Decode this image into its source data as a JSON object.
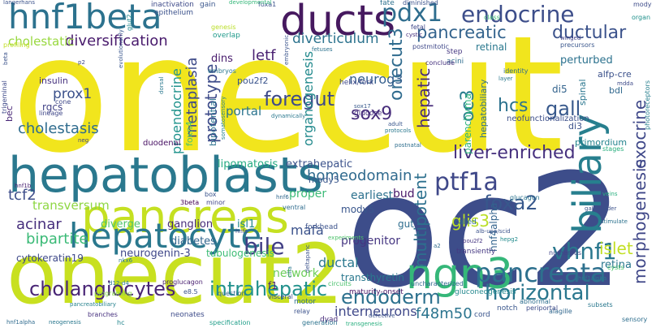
{
  "words": [
    {
      "text": "onecut",
      "color": "#f1e51d"
    },
    {
      "text": "oc2",
      "color": "#3d4d8a"
    },
    {
      "text": "onecut2",
      "color": "#c8e020"
    },
    {
      "text": "hepatoblasts",
      "color": "#2a788e"
    },
    {
      "text": "pancreas",
      "color": "#c5e021"
    },
    {
      "text": "ducts",
      "color": "#46195f"
    },
    {
      "text": "hnf1beta",
      "color": "#2c728e"
    },
    {
      "text": "biliary",
      "color": "#277f8e"
    },
    {
      "text": "ngn3",
      "color": "#35b779"
    },
    {
      "text": "hepatocyte",
      "color": "#2a788e"
    },
    {
      "text": "pancreata",
      "color": "#2d708e"
    },
    {
      "text": "bile",
      "color": "#423f85"
    },
    {
      "text": "vhnf1",
      "color": "#2a788e"
    },
    {
      "text": "pdx1",
      "color": "#2e6d8e"
    },
    {
      "text": "endocrine",
      "color": "#3d4e8a"
    },
    {
      "text": "ptf1a",
      "color": "#3f4889"
    },
    {
      "text": "horizontal",
      "color": "#2a778e"
    },
    {
      "text": "cholangiocytes",
      "color": "#482475"
    },
    {
      "text": "endoderm",
      "color": "#2d718e"
    },
    {
      "text": "intrahepatic",
      "color": "#21918c"
    },
    {
      "text": "foregut",
      "color": "#3e4a89"
    },
    {
      "text": "ductular",
      "color": "#3b528b"
    },
    {
      "text": "pancreatic",
      "color": "#33638d"
    },
    {
      "text": "diversification",
      "color": "#481a6c"
    },
    {
      "text": "prototype",
      "color": "#3e4c8a"
    },
    {
      "text": "hepatic",
      "color": "#472c7a"
    },
    {
      "text": "liver-enriched",
      "color": "#46307e"
    },
    {
      "text": "homeodomain",
      "color": "#306a8e"
    },
    {
      "text": "foxa2",
      "color": "#38588c"
    },
    {
      "text": "morphogenesis",
      "color": "#3f4788"
    },
    {
      "text": "exocrine",
      "color": "#3f4889"
    },
    {
      "text": "gall",
      "color": "#38598c"
    },
    {
      "text": "hcs",
      "color": "#2c728e"
    },
    {
      "text": "sox9",
      "color": "#472d7b"
    },
    {
      "text": "oc3",
      "color": "#287d8e"
    },
    {
      "text": "onecut3",
      "color": "#2f6b8e"
    },
    {
      "text": "neurog3",
      "color": "#355f8d"
    },
    {
      "text": "diverticulum",
      "color": "#2c738e"
    },
    {
      "text": "letf",
      "color": "#481f70"
    },
    {
      "text": "multipotent",
      "color": "#2d708e"
    },
    {
      "text": "organogenesis",
      "color": "#238a8d"
    },
    {
      "text": "proendocrine",
      "color": "#20938c"
    },
    {
      "text": "metaplasia",
      "color": "#3e4a89"
    },
    {
      "text": "cholestasis",
      "color": "#2f6c8e"
    },
    {
      "text": "prox1",
      "color": "#3b518b"
    },
    {
      "text": "portal",
      "color": "#2b748e"
    },
    {
      "text": "acinar",
      "color": "#472f7d"
    },
    {
      "text": "bipartite",
      "color": "#3aba76"
    },
    {
      "text": "transversum",
      "color": "#8fd744"
    },
    {
      "text": "tcf2",
      "color": "#3d4d8a"
    },
    {
      "text": "cholestatic",
      "color": "#98d83e"
    },
    {
      "text": "dins",
      "color": "#481b6d"
    },
    {
      "text": "islet",
      "color": "#c2df23"
    },
    {
      "text": "glis3",
      "color": "#bade28"
    },
    {
      "text": "mafa",
      "color": "#3b528b"
    },
    {
      "text": "f48m50",
      "color": "#2b748e"
    },
    {
      "text": "retina",
      "color": "#2a778e"
    },
    {
      "text": "ductal",
      "color": "#2a788e"
    },
    {
      "text": "bud",
      "color": "#481769"
    },
    {
      "text": "earliest",
      "color": "#2c718e"
    },
    {
      "text": "proper",
      "color": "#3aba76"
    },
    {
      "text": "diverge",
      "color": "#4ec36b"
    },
    {
      "text": "ganglion",
      "color": "#472c7a"
    },
    {
      "text": "isl1",
      "color": "#23898e"
    },
    {
      "text": "diabetes",
      "color": "#32658e"
    },
    {
      "text": "neurogenin-3",
      "color": "#3f4788"
    },
    {
      "text": "cytokeratin19",
      "color": "#3e4989"
    },
    {
      "text": "progenitor",
      "color": "#453581"
    },
    {
      "text": "gut",
      "color": "#2e6d8e"
    },
    {
      "text": "modv5",
      "color": "#39568c"
    },
    {
      "text": "extrahepatic",
      "color": "#3b528b"
    },
    {
      "text": "lipomatosis",
      "color": "#25ab82"
    },
    {
      "text": "bipotential",
      "color": "#2c728e"
    },
    {
      "text": "foxn4",
      "color": "#4ac16d"
    },
    {
      "text": "hnf4alpha",
      "color": "#33638d"
    },
    {
      "text": "di5",
      "color": "#33638d"
    },
    {
      "text": "di3",
      "color": "#3b528b"
    },
    {
      "text": "parenchyma",
      "color": "#2fb47c"
    },
    {
      "text": "hepatobiliary",
      "color": "#2e6e8e"
    },
    {
      "text": "spinal",
      "color": "#2a768e"
    },
    {
      "text": "neofunctionalization",
      "color": "#3c4f8a"
    },
    {
      "text": "primordium",
      "color": "#25848e"
    },
    {
      "text": "perturbed",
      "color": "#2c728e"
    },
    {
      "text": "alfp-cre",
      "color": "#3b518b"
    },
    {
      "text": "bdl",
      "color": "#31688e"
    },
    {
      "text": "interneurons",
      "color": "#3f4889"
    },
    {
      "text": "transthyretin",
      "color": "#2a788e"
    },
    {
      "text": "network",
      "color": "#6ccd5a"
    },
    {
      "text": "tubulogenesis",
      "color": "#3dbc74"
    },
    {
      "text": "duodenal",
      "color": "#471063"
    },
    {
      "text": "rgcs",
      "color": "#414287"
    },
    {
      "text": "bec",
      "color": "#482777"
    },
    {
      "text": "insulin",
      "color": "#46327e"
    },
    {
      "text": "pou2f2",
      "color": "#3a548c"
    },
    {
      "text": "helix/fork",
      "color": "#3f4889"
    },
    {
      "text": "glucose",
      "color": "#46307e"
    },
    {
      "text": "sox17",
      "color": "#375a8c"
    },
    {
      "text": "gluconeogenesis",
      "color": "#23888e"
    },
    {
      "text": "maturity-onset",
      "color": "#471365"
    },
    {
      "text": "motor",
      "color": "#2e6f8e"
    },
    {
      "text": "notch",
      "color": "#39568c"
    },
    {
      "text": "forkhead",
      "color": "#3b528b"
    },
    {
      "text": "glucagon",
      "color": "#2c738e"
    },
    {
      "text": "alagille",
      "color": "#31688e"
    },
    {
      "text": "cysts",
      "color": "#4ec36b"
    },
    {
      "text": "step",
      "color": "#453781"
    },
    {
      "text": "acini",
      "color": "#2e6d8e"
    },
    {
      "text": "neonates",
      "color": "#3e4c8a"
    },
    {
      "text": "epithelium",
      "color": "#3b518b"
    },
    {
      "text": "inactivation",
      "color": "#3e4a89"
    },
    {
      "text": "gain",
      "color": "#39568c"
    },
    {
      "text": "dyad",
      "color": "#472a7a"
    },
    {
      "text": "cord",
      "color": "#3a548c"
    },
    {
      "text": "embryos",
      "color": "#2a788e"
    },
    {
      "text": "genesis",
      "color": "#bade28"
    },
    {
      "text": "overlap",
      "color": "#1f998a"
    },
    {
      "text": "uncharacterized",
      "color": "#31688e"
    },
    {
      "text": "fetal",
      "color": "#3f4889"
    },
    {
      "text": "transiently",
      "color": "#453882"
    },
    {
      "text": "numerous",
      "color": "#404588"
    },
    {
      "text": "organ",
      "color": "#21918c"
    },
    {
      "text": "called",
      "color": "#2f6b8e"
    },
    {
      "text": "circuits",
      "color": "#4ac16d"
    },
    {
      "text": "conclude",
      "color": "#46327e"
    },
    {
      "text": "profiling",
      "color": "#c2df23"
    },
    {
      "text": "relay",
      "color": "#3b528b"
    },
    {
      "text": "sensory",
      "color": "#2e6e8e"
    },
    {
      "text": "programing",
      "color": "#85d54a"
    },
    {
      "text": "proglucagon",
      "color": "#481f70"
    },
    {
      "text": "e8.5",
      "color": "#3b528b"
    },
    {
      "text": "question",
      "color": "#32658e"
    },
    {
      "text": "visceral",
      "color": "#3d4e8a"
    },
    {
      "text": "specification",
      "color": "#1f9e89"
    },
    {
      "text": "generation",
      "color": "#2c738e"
    },
    {
      "text": "periportal",
      "color": "#3e4c8a"
    },
    {
      "text": "abnormal",
      "color": "#2e6e8e"
    },
    {
      "text": "subsets",
      "color": "#2a788e"
    },
    {
      "text": "branches",
      "color": "#46307e"
    },
    {
      "text": "hc",
      "color": "#24868e"
    },
    {
      "text": "identity",
      "color": "#2f6c8e"
    },
    {
      "text": "stages",
      "color": "#29af7f"
    },
    {
      "text": "trigeminal",
      "color": "#3e4989"
    },
    {
      "text": "lineage",
      "color": "#3f4788"
    },
    {
      "text": "cone",
      "color": "#3f4889"
    },
    {
      "text": "hnf1b",
      "color": "#481f70"
    },
    {
      "text": "box",
      "color": "#3a548c"
    },
    {
      "text": "minor",
      "color": "#404588"
    },
    {
      "text": "3beta",
      "color": "#440154"
    },
    {
      "text": "hnf6",
      "color": "#31688e"
    },
    {
      "text": "ventral",
      "color": "#2f6c8e"
    },
    {
      "text": "hepg2",
      "color": "#228b8d"
    },
    {
      "text": "postmitotic",
      "color": "#3f4889"
    },
    {
      "text": "precursors",
      "color": "#39568c"
    },
    {
      "text": "photoreceptors",
      "color": "#277f8e"
    },
    {
      "text": "winged",
      "color": "#414287"
    },
    {
      "text": "dynamically",
      "color": "#2a788e"
    },
    {
      "text": "glut2",
      "color": "#23888e"
    },
    {
      "text": "somatosensory",
      "color": "#26828e"
    },
    {
      "text": "embryonic",
      "color": "#3a548c"
    },
    {
      "text": "foxa1",
      "color": "#3b528b"
    },
    {
      "text": "fate",
      "color": "#2d718e"
    },
    {
      "text": "diminished",
      "color": "#3b528b"
    },
    {
      "text": "developmental",
      "color": "#35b779"
    },
    {
      "text": "class",
      "color": "#3dbc74"
    },
    {
      "text": "cystic",
      "color": "#46307e"
    },
    {
      "text": "layer",
      "color": "#2a788e"
    },
    {
      "text": "mdda",
      "color": "#3e4a89"
    },
    {
      "text": "veins",
      "color": "#29af7f"
    },
    {
      "text": "gallbladder",
      "color": "#3b528b"
    },
    {
      "text": "stimulate",
      "color": "#2c728e"
    },
    {
      "text": "alb-upa/scid",
      "color": "#3b528b"
    },
    {
      "text": "pou2f2",
      "color": "#453581"
    },
    {
      "text": "a2",
      "color": "#2f6c8e"
    },
    {
      "text": "hnf1alpha",
      "color": "#2f6b8e"
    },
    {
      "text": "neogenesis",
      "color": "#2a788e"
    },
    {
      "text": "defective",
      "color": "#3b528b"
    },
    {
      "text": "transgenesis",
      "color": "#29af7f"
    },
    {
      "text": "experiments",
      "color": "#4ec36b"
    },
    {
      "text": "deltapanc",
      "color": "#3b528b"
    },
    {
      "text": "protocols",
      "color": "#2a788e"
    },
    {
      "text": "adult",
      "color": "#39568c"
    },
    {
      "text": "postnatal",
      "color": "#2e6e8e"
    },
    {
      "text": "fetuses",
      "color": "#2c728e"
    },
    {
      "text": "retinal",
      "color": "#2a788e"
    },
    {
      "text": "mody",
      "color": "#3e4c8a"
    },
    {
      "text": "f1",
      "color": "#482475"
    },
    {
      "text": "cilia",
      "color": "#2a788e"
    },
    {
      "text": "hnfs",
      "color": "#3f4889"
    },
    {
      "text": "nkx6",
      "color": "#2a788e"
    },
    {
      "text": "pancreatobiliary",
      "color": "#26828e"
    },
    {
      "text": "beta",
      "color": "#3b528b"
    },
    {
      "text": "p2",
      "color": "#3e4a89"
    },
    {
      "text": "evolutionarily",
      "color": "#39568c"
    },
    {
      "text": "dorsal",
      "color": "#2a788e"
    },
    {
      "text": "langerhans",
      "color": "#3b528b"
    },
    {
      "text": "hnf1alpha",
      "color": "#2a788e"
    },
    {
      "text": "neg",
      "color": "#3f4889"
    },
    {
      "text": "mody5",
      "color": "#39568c"
    },
    {
      "text": "d12-d4",
      "color": "#2a788e"
    }
  ]
}
